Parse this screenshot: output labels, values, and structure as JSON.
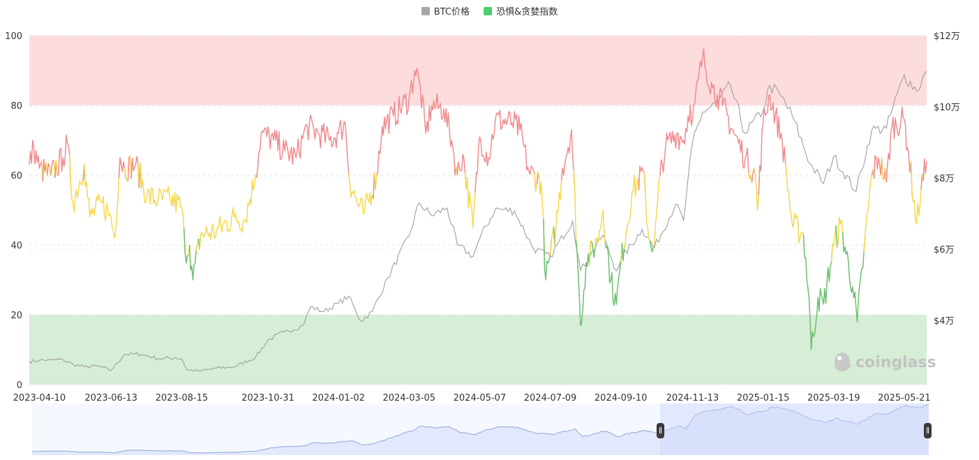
{
  "colors": {
    "btc": "#9e9e9e",
    "fg_greed": "#f08b8f",
    "fg_neutral": "#f3d94e",
    "fg_fear": "#6cbf6e",
    "greed_band": "#fddcdd",
    "fear_band": "#d6edd6",
    "nav_fill": "#dbe3fb",
    "nav_line": "#8ea4dc",
    "legend_btc": "#a7a7a7",
    "legend_fg": "#4cce72"
  },
  "legend": [
    {
      "label": "BTC价格",
      "color_key": "legend_btc"
    },
    {
      "label": "恐惧&贪婪指数",
      "color_key": "legend_fg"
    }
  ],
  "watermark": "coinglass",
  "chart_data": {
    "type": "line",
    "x_type": "date",
    "x_ticks": [
      "2023-04-10",
      "2023-06-13",
      "2023-08-15",
      "2023-10-31",
      "2024-01-02",
      "2024-03-05",
      "2024-05-07",
      "2024-07-09",
      "2024-09-10",
      "2024-11-13",
      "2025-01-15",
      "2025-03-19",
      "2025-05-21"
    ],
    "y_left": {
      "ticks": [
        "0",
        "20",
        "40",
        "60",
        "80",
        "100"
      ],
      "ylim": [
        0,
        100
      ]
    },
    "y_right": {
      "ticks": [
        "$4万",
        "$6万",
        "$8万",
        "$10万",
        "$12万"
      ],
      "tick_values": [
        40000,
        60000,
        80000,
        100000,
        120000
      ],
      "ylim": [
        22000,
        120000
      ]
    },
    "bands": [
      {
        "from": 80,
        "to": 100,
        "color_key": "greed_band"
      },
      {
        "from": 0,
        "to": 20,
        "color_key": "fear_band"
      }
    ],
    "fg_thresholds": {
      "fear_below": 40,
      "greed_above": 60
    },
    "series": [
      {
        "name": "BTC价格",
        "axis": "right",
        "points": [
          [
            "2023-04-01",
            28500
          ],
          [
            "2023-04-10",
            28800
          ],
          [
            "2023-04-20",
            28900
          ],
          [
            "2023-05-01",
            29000
          ],
          [
            "2023-05-10",
            27700
          ],
          [
            "2023-05-20",
            27000
          ],
          [
            "2023-06-01",
            27200
          ],
          [
            "2023-06-13",
            26000
          ],
          [
            "2023-06-25",
            30500
          ],
          [
            "2023-07-10",
            30500
          ],
          [
            "2023-07-25",
            29300
          ],
          [
            "2023-08-10",
            29500
          ],
          [
            "2023-08-15",
            29200
          ],
          [
            "2023-08-20",
            26100
          ],
          [
            "2023-09-01",
            25800
          ],
          [
            "2023-09-15",
            26600
          ],
          [
            "2023-10-01",
            27000
          ],
          [
            "2023-10-20",
            29700
          ],
          [
            "2023-10-31",
            34500
          ],
          [
            "2023-11-15",
            36800
          ],
          [
            "2023-12-01",
            38500
          ],
          [
            "2023-12-08",
            43800
          ],
          [
            "2023-12-20",
            42500
          ],
          [
            "2024-01-02",
            44900
          ],
          [
            "2024-01-11",
            46800
          ],
          [
            "2024-01-22",
            39800
          ],
          [
            "2024-02-01",
            42500
          ],
          [
            "2024-02-15",
            51900
          ],
          [
            "2024-03-05",
            63800
          ],
          [
            "2024-03-14",
            73000
          ],
          [
            "2024-03-25",
            69500
          ],
          [
            "2024-04-08",
            71600
          ],
          [
            "2024-04-17",
            61300
          ],
          [
            "2024-05-01",
            58000
          ],
          [
            "2024-05-07",
            63000
          ],
          [
            "2024-05-21",
            71300
          ],
          [
            "2024-06-07",
            70800
          ],
          [
            "2024-06-24",
            60200
          ],
          [
            "2024-07-09",
            57900
          ],
          [
            "2024-07-29",
            68000
          ],
          [
            "2024-08-05",
            54000
          ],
          [
            "2024-08-25",
            64000
          ],
          [
            "2024-09-06",
            53900
          ],
          [
            "2024-09-10",
            57000
          ],
          [
            "2024-09-29",
            65600
          ],
          [
            "2024-10-10",
            60500
          ],
          [
            "2024-10-29",
            72700
          ],
          [
            "2024-11-05",
            68000
          ],
          [
            "2024-11-13",
            90000
          ],
          [
            "2024-11-22",
            98500
          ],
          [
            "2024-12-05",
            101000
          ],
          [
            "2024-12-17",
            106000
          ],
          [
            "2024-12-30",
            92500
          ],
          [
            "2025-01-15",
            99000
          ],
          [
            "2025-01-21",
            106000
          ],
          [
            "2025-01-31",
            103000
          ],
          [
            "2025-02-10",
            97500
          ],
          [
            "2025-02-26",
            84000
          ],
          [
            "2025-03-10",
            78500
          ],
          [
            "2025-03-19",
            86000
          ],
          [
            "2025-04-08",
            76300
          ],
          [
            "2025-04-22",
            93500
          ],
          [
            "2025-05-05",
            94000
          ],
          [
            "2025-05-21",
            109000
          ],
          [
            "2025-06-01",
            104500
          ],
          [
            "2025-06-10",
            110000
          ]
        ]
      },
      {
        "name": "恐惧&贪婪指数",
        "axis": "left",
        "points": [
          [
            "2023-04-01",
            63
          ],
          [
            "2023-04-05",
            68
          ],
          [
            "2023-04-10",
            62
          ],
          [
            "2023-04-20",
            60
          ],
          [
            "2023-05-01",
            65
          ],
          [
            "2023-05-05",
            69
          ],
          [
            "2023-05-10",
            52
          ],
          [
            "2023-05-20",
            63
          ],
          [
            "2023-05-25",
            48
          ],
          [
            "2023-06-05",
            52
          ],
          [
            "2023-06-13",
            48
          ],
          [
            "2023-06-16",
            42
          ],
          [
            "2023-06-21",
            65
          ],
          [
            "2023-06-25",
            62
          ],
          [
            "2023-07-05",
            63
          ],
          [
            "2023-07-15",
            54
          ],
          [
            "2023-07-25",
            53
          ],
          [
            "2023-08-05",
            53
          ],
          [
            "2023-08-15",
            51
          ],
          [
            "2023-08-18",
            38
          ],
          [
            "2023-08-22",
            40
          ],
          [
            "2023-08-25",
            30
          ],
          [
            "2023-09-01",
            43
          ],
          [
            "2023-09-15",
            44
          ],
          [
            "2023-10-01",
            48
          ],
          [
            "2023-10-10",
            47
          ],
          [
            "2023-10-20",
            60
          ],
          [
            "2023-10-25",
            72
          ],
          [
            "2023-11-05",
            70
          ],
          [
            "2023-11-15",
            67
          ],
          [
            "2023-11-25",
            65
          ],
          [
            "2023-12-05",
            74
          ],
          [
            "2023-12-15",
            72
          ],
          [
            "2023-12-25",
            70
          ],
          [
            "2024-01-02",
            72
          ],
          [
            "2024-01-08",
            75
          ],
          [
            "2024-01-12",
            58
          ],
          [
            "2024-01-20",
            51
          ],
          [
            "2024-01-25",
            49
          ],
          [
            "2024-02-05",
            60
          ],
          [
            "2024-02-10",
            74
          ],
          [
            "2024-02-20",
            77
          ],
          [
            "2024-03-05",
            82
          ],
          [
            "2024-03-10",
            90
          ],
          [
            "2024-03-14",
            87
          ],
          [
            "2024-03-20",
            72
          ],
          [
            "2024-03-25",
            80
          ],
          [
            "2024-04-05",
            79
          ],
          [
            "2024-04-12",
            70
          ],
          [
            "2024-04-17",
            60
          ],
          [
            "2024-04-22",
            66
          ],
          [
            "2024-05-01",
            45
          ],
          [
            "2024-05-07",
            71
          ],
          [
            "2024-05-15",
            65
          ],
          [
            "2024-05-21",
            76
          ],
          [
            "2024-06-05",
            75
          ],
          [
            "2024-06-12",
            73
          ],
          [
            "2024-06-20",
            61
          ],
          [
            "2024-07-01",
            58
          ],
          [
            "2024-07-05",
            30
          ],
          [
            "2024-07-09",
            37
          ],
          [
            "2024-07-14",
            45
          ],
          [
            "2024-07-20",
            62
          ],
          [
            "2024-07-28",
            73
          ],
          [
            "2024-08-05",
            17
          ],
          [
            "2024-08-10",
            35
          ],
          [
            "2024-08-20",
            41
          ],
          [
            "2024-08-25",
            50
          ],
          [
            "2024-09-01",
            30
          ],
          [
            "2024-09-06",
            23
          ],
          [
            "2024-09-10",
            35
          ],
          [
            "2024-09-20",
            55
          ],
          [
            "2024-09-30",
            61
          ],
          [
            "2024-10-05",
            42
          ],
          [
            "2024-10-10",
            40
          ],
          [
            "2024-10-15",
            60
          ],
          [
            "2024-10-20",
            68
          ],
          [
            "2024-10-30",
            72
          ],
          [
            "2024-11-05",
            70
          ],
          [
            "2024-11-11",
            80
          ],
          [
            "2024-11-13",
            76
          ],
          [
            "2024-11-22",
            94
          ],
          [
            "2024-12-01",
            85
          ],
          [
            "2024-12-05",
            83
          ],
          [
            "2024-12-10",
            80
          ],
          [
            "2024-12-20",
            72
          ],
          [
            "2024-12-30",
            65
          ],
          [
            "2025-01-08",
            60
          ],
          [
            "2025-01-10",
            50
          ],
          [
            "2025-01-15",
            75
          ],
          [
            "2025-01-21",
            83
          ],
          [
            "2025-02-01",
            70
          ],
          [
            "2025-02-05",
            60
          ],
          [
            "2025-02-10",
            46
          ],
          [
            "2025-02-20",
            43
          ],
          [
            "2025-02-25",
            25
          ],
          [
            "2025-02-27",
            10
          ],
          [
            "2025-03-05",
            25
          ],
          [
            "2025-03-10",
            23
          ],
          [
            "2025-03-19",
            40
          ],
          [
            "2025-03-25",
            46
          ],
          [
            "2025-04-05",
            28
          ],
          [
            "2025-04-09",
            18
          ],
          [
            "2025-04-15",
            38
          ],
          [
            "2025-04-22",
            60
          ],
          [
            "2025-04-28",
            65
          ],
          [
            "2025-05-05",
            58
          ],
          [
            "2025-05-10",
            74
          ],
          [
            "2025-05-21",
            76
          ],
          [
            "2025-05-25",
            66
          ],
          [
            "2025-06-01",
            46
          ],
          [
            "2025-06-05",
            56
          ],
          [
            "2025-06-10",
            64
          ]
        ]
      }
    ]
  }
}
